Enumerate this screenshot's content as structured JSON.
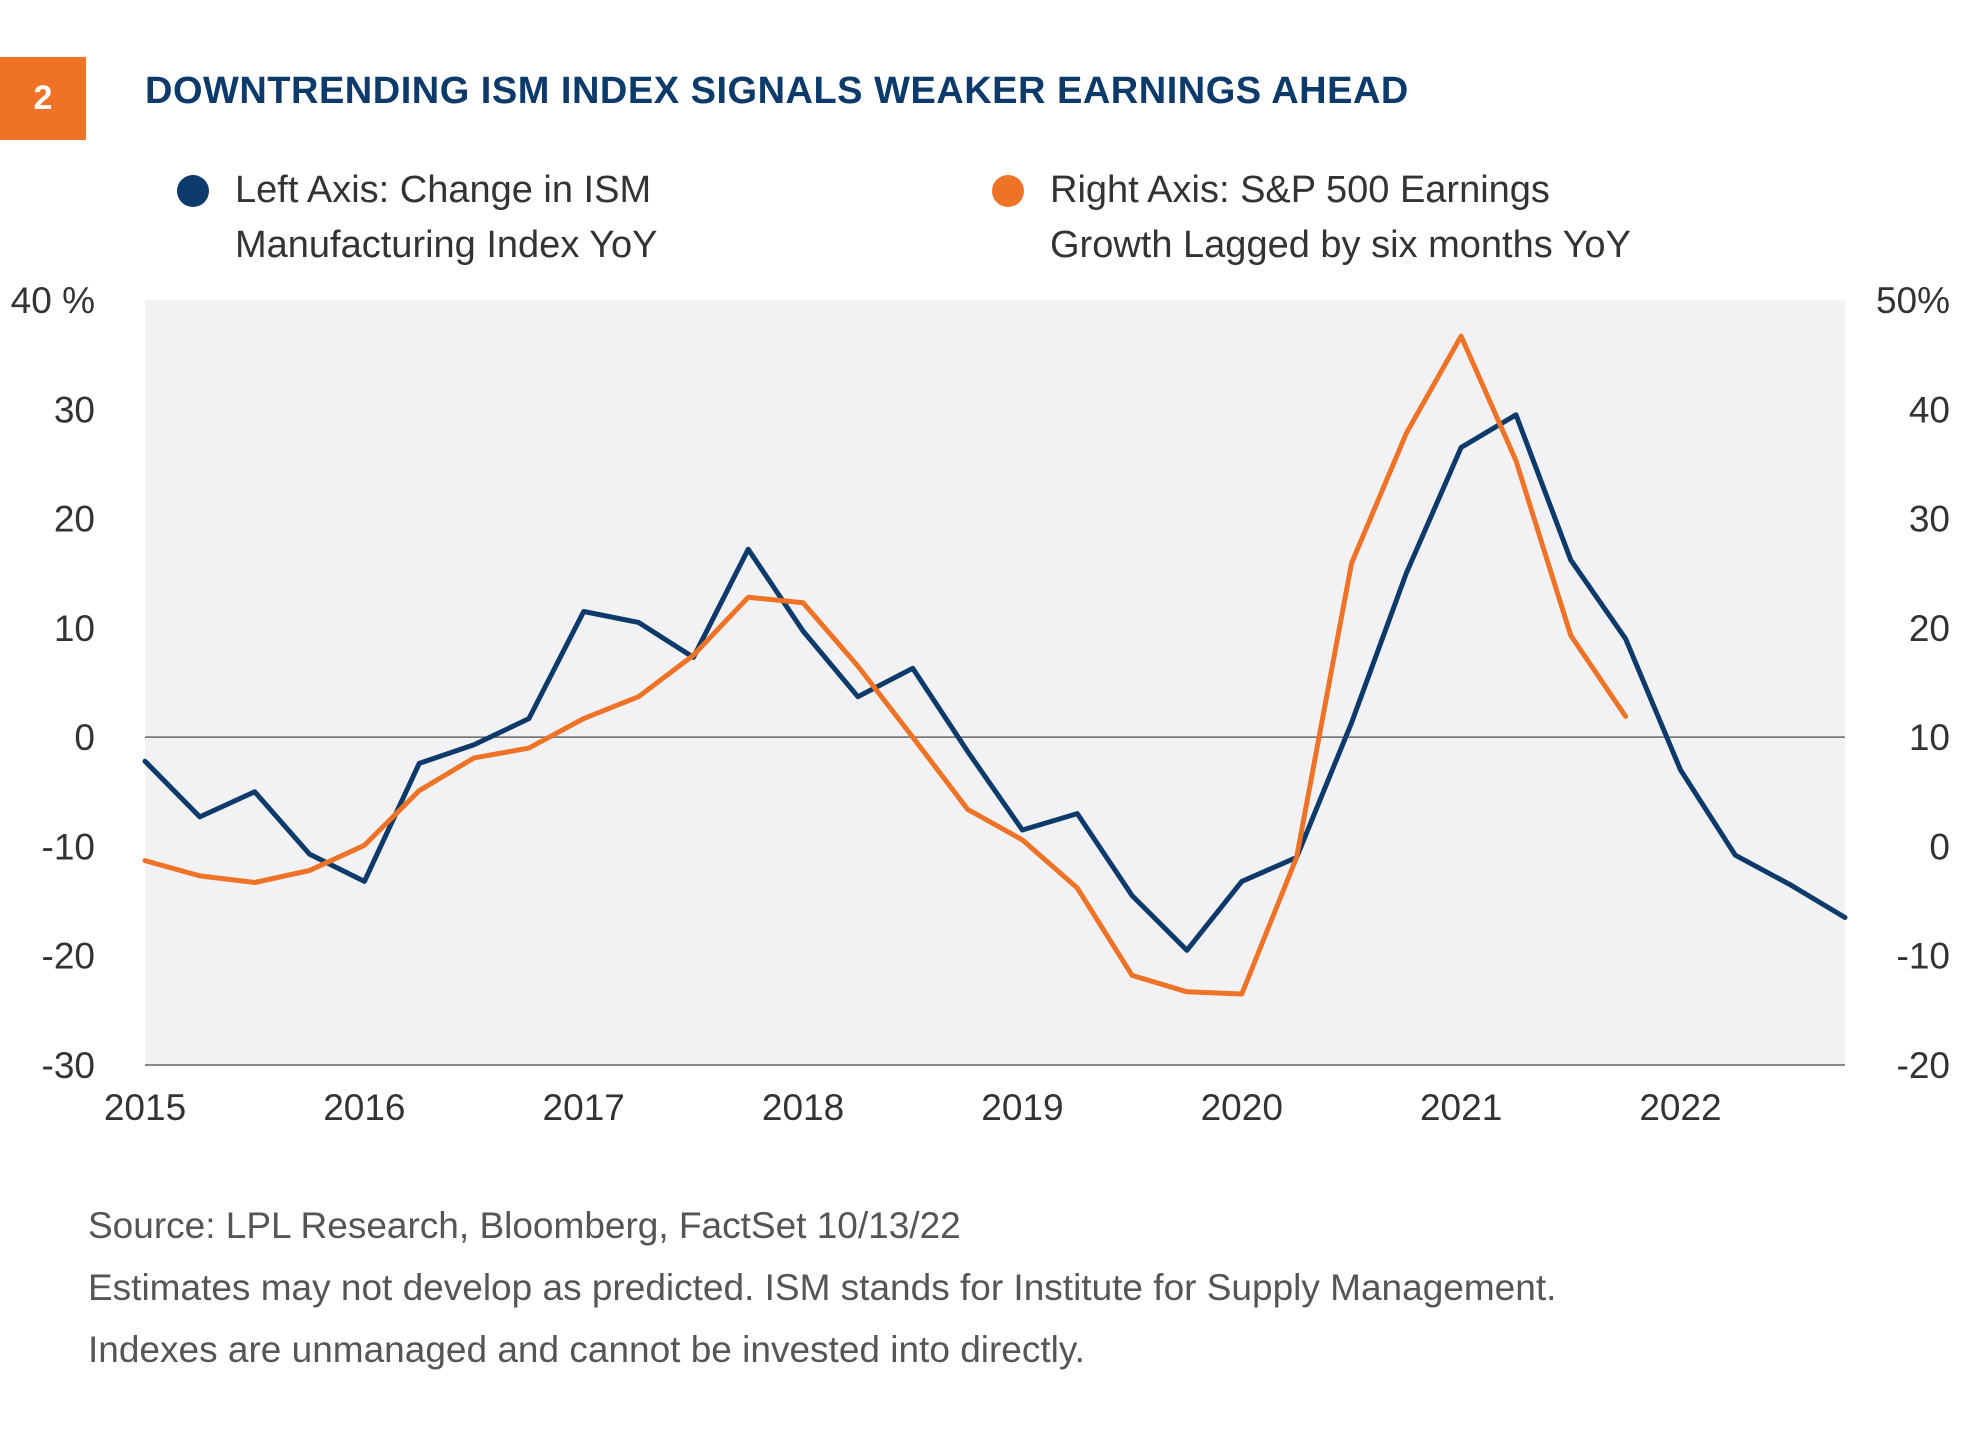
{
  "figure": {
    "number": "2",
    "title": "DOWNTRENDING ISM INDEX SIGNALS WEAKER EARNINGS AHEAD",
    "accent_color": "#ee7326",
    "title_color": "#0c3a6b"
  },
  "legend": [
    {
      "lines": [
        "Left Axis: Change in ISM",
        "Manufacturing Index YoY"
      ],
      "color": "#0c3a6b"
    },
    {
      "lines": [
        "Right Axis: S&P 500 Earnings",
        "Growth Lagged by six months YoY"
      ],
      "color": "#ee7326"
    }
  ],
  "footer": [
    "Source: LPL Research, Bloomberg, FactSet  10/13/22",
    "Estimates may not develop as predicted. ISM stands for Institute for Supply Management.",
    "Indexes are unmanaged and cannot be invested into directly."
  ],
  "chart_data": {
    "type": "line",
    "title": "DOWNTRENDING ISM INDEX SIGNALS WEAKER EARNINGS AHEAD",
    "background": "#f2f2f4",
    "grid": false,
    "legend_position": "top",
    "x_axis": {
      "range": [
        2015,
        2022.75
      ],
      "tick_values": [
        2015,
        2016,
        2017,
        2018,
        2019,
        2020,
        2021,
        2022
      ],
      "tick_labels": [
        "2015",
        "2016",
        "2017",
        "2018",
        "2019",
        "2020",
        "2021",
        "2022"
      ]
    },
    "y_left": {
      "range": [
        -30,
        40
      ],
      "tick_values": [
        40,
        30,
        20,
        10,
        0,
        -10,
        -20,
        -30
      ],
      "tick_labels": [
        "40 %",
        "30",
        "20",
        "10",
        "0",
        "-10",
        "-20",
        "-30"
      ],
      "zero_line": 0
    },
    "y_right": {
      "range": [
        -20,
        50
      ],
      "tick_values": [
        50,
        40,
        30,
        20,
        10,
        0,
        -10,
        -20
      ],
      "tick_labels": [
        "50%",
        "40",
        "30",
        "20",
        "10",
        "0",
        "-10",
        "-20"
      ]
    },
    "series": [
      {
        "name": "Left Axis: Change in ISM Manufacturing Index YoY",
        "axis": "left",
        "color": "#0c3a6b",
        "points": [
          [
            2015.0,
            -2.2
          ],
          [
            2015.25,
            -7.3
          ],
          [
            2015.5,
            -5.0
          ],
          [
            2015.75,
            -10.7
          ],
          [
            2016.0,
            -13.2
          ],
          [
            2016.25,
            -2.4
          ],
          [
            2016.5,
            -0.7
          ],
          [
            2016.75,
            1.7
          ],
          [
            2017.0,
            11.5
          ],
          [
            2017.25,
            10.5
          ],
          [
            2017.5,
            7.3
          ],
          [
            2017.75,
            17.2
          ],
          [
            2018.0,
            9.7
          ],
          [
            2018.25,
            3.7
          ],
          [
            2018.5,
            6.3
          ],
          [
            2018.75,
            -1.3
          ],
          [
            2019.0,
            -8.5
          ],
          [
            2019.25,
            -7.0
          ],
          [
            2019.5,
            -14.5
          ],
          [
            2019.75,
            -19.5
          ],
          [
            2020.0,
            -13.2
          ],
          [
            2020.25,
            -11.0
          ],
          [
            2020.5,
            1.3
          ],
          [
            2020.75,
            15.0
          ],
          [
            2021.0,
            26.5
          ],
          [
            2021.25,
            29.5
          ],
          [
            2021.5,
            16.2
          ],
          [
            2021.75,
            9.0
          ],
          [
            2022.0,
            -3.0
          ],
          [
            2022.25,
            -10.8
          ],
          [
            2022.5,
            -13.5
          ],
          [
            2022.75,
            -16.5
          ]
        ]
      },
      {
        "name": "Right Axis: S&P 500 Earnings Growth Lagged by six months YoY",
        "axis": "right",
        "color": "#ee7326",
        "points": [
          [
            2015.0,
            -1.3
          ],
          [
            2015.25,
            -2.7
          ],
          [
            2015.5,
            -3.3
          ],
          [
            2015.75,
            -2.2
          ],
          [
            2016.0,
            0.1
          ],
          [
            2016.25,
            5.1
          ],
          [
            2016.5,
            8.1
          ],
          [
            2016.75,
            9.0
          ],
          [
            2017.0,
            11.7
          ],
          [
            2017.25,
            13.7
          ],
          [
            2017.5,
            17.5
          ],
          [
            2017.75,
            22.8
          ],
          [
            2018.0,
            22.3
          ],
          [
            2018.25,
            16.5
          ],
          [
            2018.5,
            10.0
          ],
          [
            2018.75,
            3.4
          ],
          [
            2019.0,
            0.6
          ],
          [
            2019.25,
            -3.8
          ],
          [
            2019.5,
            -11.8
          ],
          [
            2019.75,
            -13.3
          ],
          [
            2020.0,
            -13.5
          ],
          [
            2020.25,
            -1.0
          ],
          [
            2020.5,
            25.9
          ],
          [
            2020.75,
            37.8
          ],
          [
            2021.0,
            46.7
          ],
          [
            2021.25,
            35.3
          ],
          [
            2021.5,
            19.3
          ],
          [
            2021.75,
            11.9
          ]
        ]
      }
    ]
  }
}
